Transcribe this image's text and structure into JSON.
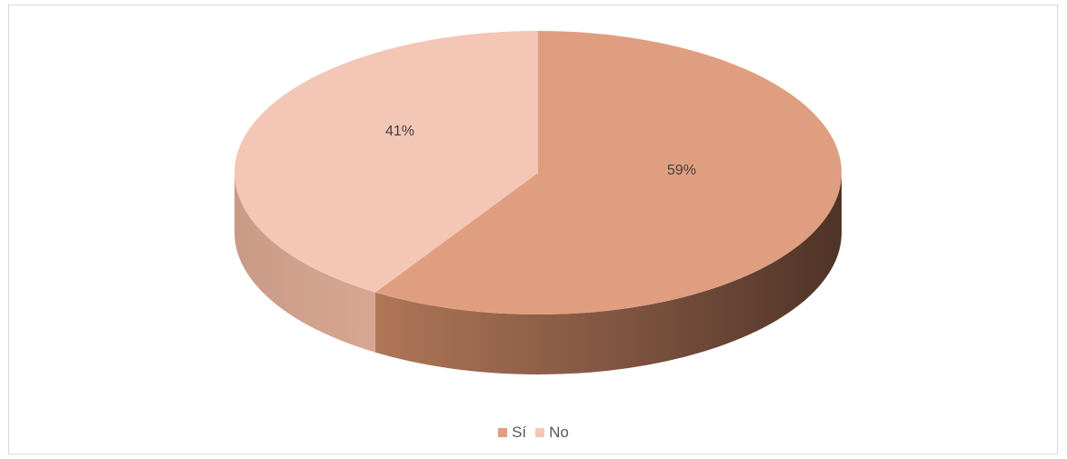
{
  "chart_data": {
    "type": "pie",
    "categories": [
      "Sí",
      "No"
    ],
    "values": [
      59,
      41
    ],
    "labels": [
      "59%",
      "41%"
    ],
    "legend_position": "bottom",
    "colors": {
      "Sí": "#e09e80",
      "No": "#f4c6b5",
      "Sí_side": "#5e3c2e",
      "No_side": "#d9a590"
    }
  }
}
